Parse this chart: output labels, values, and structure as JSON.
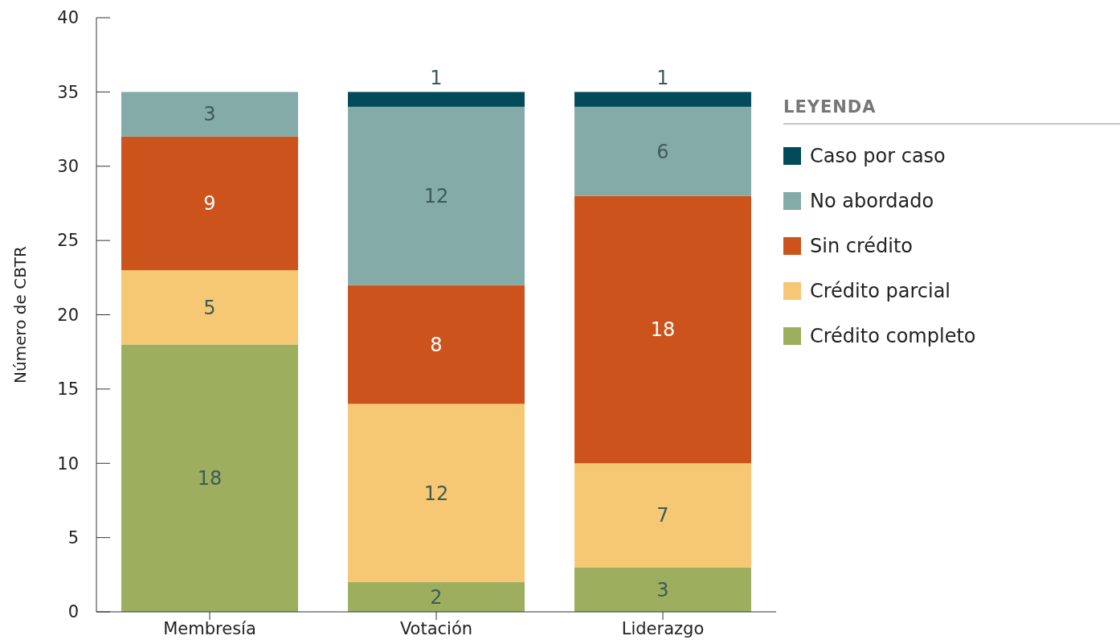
{
  "chart_data": {
    "type": "bar",
    "stacked": true,
    "ylabel": "Número de CBTR",
    "legend_title": "LEYENDA",
    "legend": "right",
    "categories": [
      "Membresía",
      "Votación",
      "Liderazgo"
    ],
    "ylim": [
      0,
      40
    ],
    "yticks": [
      0,
      5,
      10,
      15,
      20,
      25,
      30,
      35,
      40
    ],
    "grid": false,
    "series": [
      {
        "name": "Crédito completo",
        "color": "#9daf5e",
        "values": [
          18,
          2,
          3
        ],
        "value_labels": [
          "18",
          "2",
          "3"
        ]
      },
      {
        "name": "Crédito parcial",
        "color": "#f7c873",
        "values": [
          5,
          12,
          7
        ],
        "value_labels": [
          "5",
          "12",
          "7"
        ]
      },
      {
        "name": "Sin crédito",
        "color": "#cc541c",
        "values": [
          9,
          8,
          18
        ],
        "value_labels": [
          "9",
          "8",
          "18"
        ]
      },
      {
        "name": "No abordado",
        "color": "#84aba7",
        "values": [
          3,
          12,
          6
        ],
        "value_labels": [
          "3",
          "12",
          "6"
        ]
      },
      {
        "name": "Caso por caso",
        "color": "#034b5a",
        "values": [
          0,
          1,
          1
        ],
        "value_labels": [
          null,
          "1",
          "1"
        ]
      }
    ]
  }
}
